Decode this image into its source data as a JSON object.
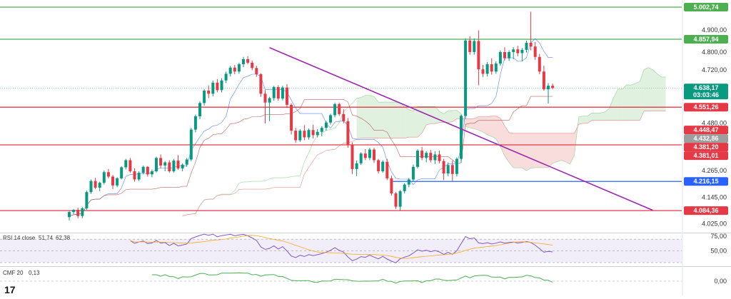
{
  "chart_data": {
    "type": "candlestick",
    "instrument_note": "",
    "price_axis": {
      "ylim": [
        3985,
        5035
      ],
      "ticks": [
        "4.900,00",
        "4.800,00",
        "4.720,00",
        "4.480,00",
        "4.265,00",
        "4.145,00",
        "4.025,00"
      ],
      "tick_values": [
        4900,
        4800,
        4720,
        4480,
        4265,
        4145,
        4025
      ]
    },
    "price_badges": [
      {
        "text": "5.002,74",
        "value": 5002.74,
        "color": "#4caf50",
        "text_color": "#ffffff"
      },
      {
        "text": "4.857,94",
        "value": 4857.94,
        "color": "#4caf50",
        "text_color": "#ffffff"
      },
      {
        "text": "4.638,17",
        "value": 4638.17,
        "color": "#089981",
        "text_color": "#ffffff",
        "sub": "03:03:46"
      },
      {
        "text": "4.551,26",
        "value": 4551.26,
        "color": "#e53945",
        "text_color": "#ffffff"
      },
      {
        "text": "4.448,47",
        "value": 4448.47,
        "color": "#e53945",
        "text_color": "#ffffff"
      },
      {
        "text": "4.432,86",
        "value": 4432.86,
        "color": "#9e9e9e",
        "text_color": "#ffffff"
      },
      {
        "text": "4.381,20",
        "value": 4381.2,
        "color": "#e53945",
        "text_color": "#ffffff"
      },
      {
        "text": "4.381,01",
        "value": 4381.01,
        "color": "#e53945",
        "text_color": "#ffffff"
      },
      {
        "text": "4.216,15",
        "value": 4216.15,
        "color": "#2962ff",
        "text_color": "#ffffff"
      },
      {
        "text": "4.084,36",
        "value": 4084.36,
        "color": "#e53945",
        "text_color": "#ffffff"
      }
    ],
    "horizontal_lines": [
      {
        "value": 5002.74,
        "color": "#4caf50"
      },
      {
        "value": 4857.94,
        "color": "#4caf50"
      },
      {
        "value": 4551.26,
        "color": "#e53945"
      },
      {
        "value": 4381.2,
        "color": "#e53945"
      },
      {
        "value": 4084.36,
        "color": "#e53945"
      }
    ],
    "support_segment": {
      "value": 4216.15,
      "from_bar": 74,
      "color": "#2962ff"
    },
    "trendline": {
      "from_bar": 46,
      "from_value": 4820,
      "to_bar": 134,
      "to_value": 4086,
      "color": "#9c27b0"
    },
    "candles": {
      "colors": {
        "up": "#089981",
        "down": "#e53945"
      },
      "ohlc": [
        [
          4055,
          4082,
          4040,
          4078
        ],
        [
          4078,
          4092,
          4068,
          4088
        ],
        [
          4088,
          4098,
          4050,
          4060
        ],
        [
          4060,
          4100,
          4050,
          4095
        ],
        [
          4095,
          4175,
          4088,
          4168
        ],
        [
          4168,
          4225,
          4160,
          4218
        ],
        [
          4218,
          4232,
          4182,
          4188
        ],
        [
          4188,
          4215,
          4172,
          4210
        ],
        [
          4210,
          4265,
          4202,
          4258
        ],
        [
          4258,
          4272,
          4230,
          4238
        ],
        [
          4238,
          4245,
          4182,
          4198
        ],
        [
          4198,
          4235,
          4190,
          4230
        ],
        [
          4230,
          4285,
          4225,
          4280
        ],
        [
          4280,
          4318,
          4270,
          4312
        ],
        [
          4312,
          4322,
          4255,
          4262
        ],
        [
          4262,
          4275,
          4215,
          4225
        ],
        [
          4225,
          4262,
          4218,
          4255
        ],
        [
          4255,
          4288,
          4248,
          4282
        ],
        [
          4282,
          4285,
          4238,
          4248
        ],
        [
          4248,
          4270,
          4235,
          4262
        ],
        [
          4262,
          4328,
          4256,
          4322
        ],
        [
          4322,
          4338,
          4275,
          4288
        ],
        [
          4288,
          4308,
          4262,
          4302
        ],
        [
          4302,
          4312,
          4255,
          4262
        ],
        [
          4262,
          4318,
          4255,
          4310
        ],
        [
          4310,
          4335,
          4268,
          4275
        ],
        [
          4275,
          4298,
          4262,
          4292
        ],
        [
          4292,
          4322,
          4282,
          4315
        ],
        [
          4315,
          4458,
          4308,
          4450
        ],
        [
          4450,
          4518,
          4438,
          4510
        ],
        [
          4510,
          4578,
          4498,
          4570
        ],
        [
          4570,
          4632,
          4558,
          4626
        ],
        [
          4626,
          4650,
          4592,
          4612
        ],
        [
          4612,
          4672,
          4600,
          4662
        ],
        [
          4662,
          4678,
          4618,
          4628
        ],
        [
          4628,
          4682,
          4618,
          4672
        ],
        [
          4672,
          4712,
          4660,
          4702
        ],
        [
          4702,
          4738,
          4690,
          4730
        ],
        [
          4730,
          4742,
          4700,
          4712
        ],
        [
          4712,
          4752,
          4702,
          4745
        ],
        [
          4745,
          4778,
          4732,
          4768
        ],
        [
          4768,
          4782,
          4745,
          4752
        ],
        [
          4752,
          4762,
          4718,
          4728
        ],
        [
          4728,
          4738,
          4688,
          4700
        ],
        [
          4700,
          4705,
          4598,
          4612
        ],
        [
          4612,
          4628,
          4478,
          4572
        ],
        [
          4572,
          4598,
          4488,
          4592
        ],
        [
          4592,
          4648,
          4580,
          4642
        ],
        [
          4642,
          4650,
          4580,
          4590
        ],
        [
          4590,
          4648,
          4582,
          4640
        ],
        [
          4640,
          4655,
          4548,
          4562
        ],
        [
          4562,
          4568,
          4428,
          4445
        ],
        [
          4445,
          4458,
          4390,
          4402
        ],
        [
          4402,
          4452,
          4395,
          4445
        ],
        [
          4445,
          4470,
          4402,
          4415
        ],
        [
          4415,
          4455,
          4405,
          4448
        ],
        [
          4448,
          4472,
          4410,
          4425
        ],
        [
          4425,
          4452,
          4415,
          4440
        ],
        [
          4440,
          4465,
          4420,
          4458
        ],
        [
          4458,
          4490,
          4445,
          4482
        ],
        [
          4482,
          4522,
          4472,
          4515
        ],
        [
          4515,
          4572,
          4505,
          4565
        ],
        [
          4565,
          4572,
          4512,
          4520
        ],
        [
          4520,
          4542,
          4478,
          4488
        ],
        [
          4488,
          4502,
          4368,
          4380
        ],
        [
          4380,
          4392,
          4250,
          4272
        ],
        [
          4272,
          4310,
          4240,
          4298
        ],
        [
          4298,
          4348,
          4290,
          4342
        ],
        [
          4342,
          4362,
          4312,
          4322
        ],
        [
          4322,
          4368,
          4312,
          4360
        ],
        [
          4360,
          4368,
          4300,
          4312
        ],
        [
          4312,
          4318,
          4252,
          4262
        ],
        [
          4262,
          4312,
          4255,
          4305
        ],
        [
          4305,
          4318,
          4222,
          4230
        ],
        [
          4230,
          4242,
          4152,
          4162
        ],
        [
          4162,
          4168,
          4092,
          4102
        ],
        [
          4102,
          4178,
          4085,
          4172
        ],
        [
          4172,
          4208,
          4162,
          4202
        ],
        [
          4202,
          4232,
          4190,
          4225
        ],
        [
          4225,
          4292,
          4218,
          4282
        ],
        [
          4282,
          4362,
          4275,
          4355
        ],
        [
          4355,
          4372,
          4312,
          4322
        ],
        [
          4322,
          4352,
          4302,
          4345
        ],
        [
          4345,
          4358,
          4302,
          4312
        ],
        [
          4312,
          4352,
          4295,
          4338
        ],
        [
          4338,
          4355,
          4298,
          4308
        ],
        [
          4308,
          4318,
          4222,
          4252
        ],
        [
          4252,
          4302,
          4240,
          4290
        ],
        [
          4290,
          4310,
          4218,
          4250
        ],
        [
          4250,
          4325,
          4238,
          4318
        ],
        [
          4318,
          4518,
          4300,
          4512
        ],
        [
          4512,
          4862,
          4498,
          4852
        ],
        [
          4852,
          4872,
          4788,
          4800
        ],
        [
          4800,
          4862,
          4788,
          4850
        ],
        [
          4850,
          4898,
          4650,
          4722
        ],
        [
          4722,
          4742,
          4688,
          4702
        ],
        [
          4702,
          4755,
          4690,
          4745
        ],
        [
          4745,
          4772,
          4698,
          4712
        ],
        [
          4712,
          4758,
          4702,
          4748
        ],
        [
          4748,
          4808,
          4738,
          4800
        ],
        [
          4800,
          4822,
          4762,
          4772
        ],
        [
          4772,
          4808,
          4760,
          4800
        ],
        [
          4800,
          4822,
          4768,
          4812
        ],
        [
          4812,
          4828,
          4782,
          4795
        ],
        [
          4795,
          4818,
          4758,
          4810
        ],
        [
          4810,
          4852,
          4798,
          4842
        ],
        [
          4842,
          4982,
          4808,
          4825
        ],
        [
          4825,
          4845,
          4765,
          4778
        ],
        [
          4778,
          4792,
          4700,
          4712
        ],
        [
          4712,
          4738,
          4625,
          4632
        ],
        [
          4632,
          4660,
          4568,
          4648
        ],
        [
          4648,
          4658,
          4632,
          4638
        ]
      ]
    },
    "moving_averages": [
      {
        "color": "#2962ff",
        "values": []
      },
      {
        "color": "#b23a3a",
        "values": []
      }
    ],
    "ichimoku_cloud": {
      "bull_fill": "#a5d6a7",
      "bear_fill": "#ef9a9a"
    },
    "indicators": [
      {
        "name": "RSI",
        "label": "RSI 14 close",
        "value_label": "51,74",
        "value_label2": "62,38",
        "value_color": "#7e57c2",
        "value2_color": "#f9a825",
        "ticks": [
          "75,00",
          "50,00"
        ],
        "band": [
          30,
          70
        ],
        "ylim": [
          25,
          80
        ]
      },
      {
        "name": "CMF",
        "label": "CMF 20",
        "value_label": "0,13",
        "value_color": "#4caf50",
        "ticks": [
          "0,00"
        ],
        "ylim": [
          -0.35,
          0.35
        ]
      }
    ],
    "watermark": "17"
  }
}
